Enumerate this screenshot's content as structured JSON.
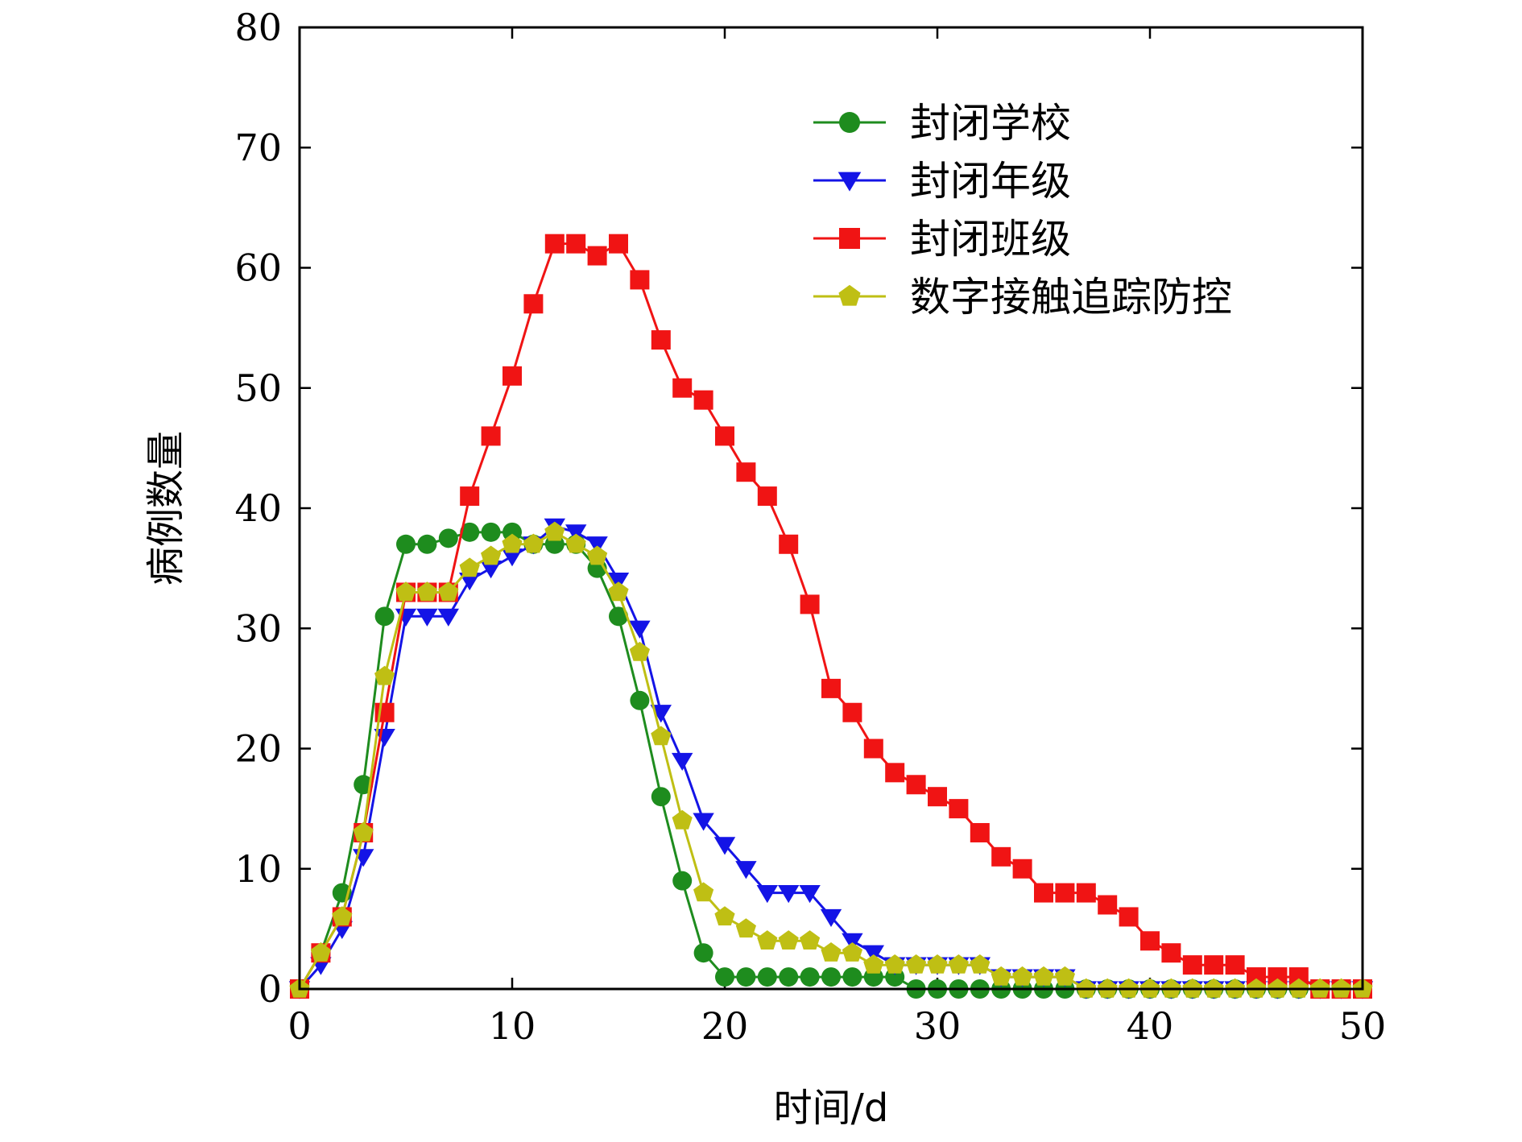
{
  "chart_data": {
    "type": "line",
    "title": "",
    "xlabel": "时间/d",
    "ylabel": "病例数量",
    "xlim": [
      0,
      50
    ],
    "ylim": [
      0,
      80
    ],
    "xticks": [
      0,
      10,
      20,
      30,
      40,
      50
    ],
    "yticks": [
      0,
      10,
      20,
      30,
      40,
      50,
      60,
      70,
      80
    ],
    "legend_position": "top-right",
    "x": [
      0,
      1,
      2,
      3,
      4,
      5,
      6,
      7,
      8,
      9,
      10,
      11,
      12,
      13,
      14,
      15,
      16,
      17,
      18,
      19,
      20,
      21,
      22,
      23,
      24,
      25,
      26,
      27,
      28,
      29,
      30,
      31,
      32,
      33,
      34,
      35,
      36,
      37,
      38,
      39,
      40,
      41,
      42,
      43,
      44,
      45,
      46,
      47,
      48,
      49,
      50
    ],
    "series": [
      {
        "name": "封闭学校",
        "color": "#1e8c1e",
        "marker": "circle",
        "values": [
          0,
          3,
          8,
          17,
          31,
          37,
          37,
          37.5,
          38,
          38,
          38,
          37,
          37,
          37,
          35,
          31,
          24,
          16,
          9,
          3,
          1,
          1,
          1,
          1,
          1,
          1,
          1,
          1,
          1,
          0,
          0,
          0,
          0,
          0,
          0,
          0,
          0,
          0,
          0,
          0,
          0,
          0,
          0,
          0,
          0,
          0,
          0,
          0,
          0,
          0,
          0
        ]
      },
      {
        "name": "封闭年级",
        "color": "#1414e6",
        "marker": "triangle-down",
        "values": [
          0,
          2,
          5,
          11,
          21,
          31,
          31,
          31,
          34,
          35,
          36,
          37,
          38.5,
          38,
          37,
          34,
          30,
          23,
          19,
          14,
          12,
          10,
          8,
          8,
          8,
          6,
          4,
          3,
          2,
          2,
          2,
          2,
          2,
          1,
          1,
          1,
          1,
          0,
          0,
          0,
          0,
          0,
          0,
          0,
          0,
          0,
          0,
          0,
          0,
          0,
          0
        ]
      },
      {
        "name": "封闭班级",
        "color": "#f01414",
        "marker": "square",
        "values": [
          0,
          3,
          6,
          13,
          23,
          33,
          33,
          33,
          41,
          46,
          51,
          57,
          62,
          62,
          61,
          62,
          59,
          54,
          50,
          49,
          46,
          43,
          41,
          37,
          32,
          25,
          23,
          20,
          18,
          17,
          16,
          15,
          13,
          11,
          10,
          8,
          8,
          8,
          7,
          6,
          4,
          3,
          2,
          2,
          2,
          1,
          1,
          1,
          0,
          0,
          0
        ]
      },
      {
        "name": "数字接触追踪防控",
        "color": "#bfbf14",
        "marker": "pentagon",
        "values": [
          0,
          3,
          6,
          13,
          26,
          33,
          33,
          33,
          35,
          36,
          37,
          37,
          38,
          37,
          36,
          33,
          28,
          21,
          14,
          8,
          6,
          5,
          4,
          4,
          4,
          3,
          3,
          2,
          2,
          2,
          2,
          2,
          2,
          1,
          1,
          1,
          1,
          0,
          0,
          0,
          0,
          0,
          0,
          0,
          0,
          0,
          0,
          0,
          0,
          0,
          0
        ]
      }
    ]
  }
}
